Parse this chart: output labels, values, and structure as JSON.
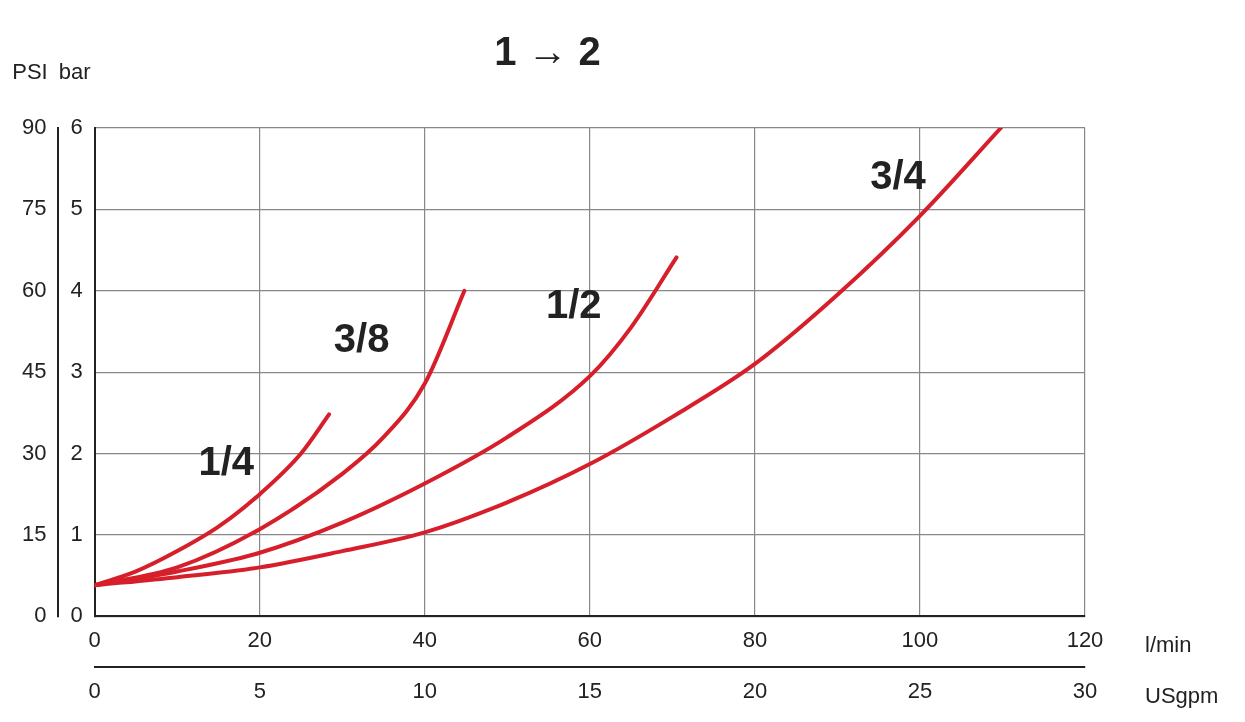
{
  "chart_data": {
    "type": "line",
    "title": "1 → 2",
    "xlabel": "l/min",
    "x2label": "USgpm",
    "ylabel": "bar",
    "y2label": "PSI",
    "xlim": [
      0,
      120
    ],
    "xticks": [
      0,
      20,
      40,
      60,
      80,
      100,
      120
    ],
    "x2lim": [
      0,
      30
    ],
    "x2ticks": [
      0,
      5,
      10,
      15,
      20,
      25,
      30
    ],
    "ylim": [
      0,
      6
    ],
    "yticks": [
      0,
      1,
      2,
      3,
      4,
      5,
      6
    ],
    "y2lim": [
      0,
      90
    ],
    "y2ticks": [
      0,
      15,
      30,
      45,
      60,
      75,
      90
    ],
    "grid": true,
    "legend": false,
    "marker": "none",
    "line_style": "solid",
    "series": [
      {
        "name": "1/4",
        "color": "#d71f2b",
        "x": [
          0,
          5,
          10,
          15,
          20,
          25,
          28.4
        ],
        "values": [
          0.38,
          0.55,
          0.8,
          1.1,
          1.5,
          2.0,
          2.48
        ]
      },
      {
        "name": "3/8",
        "color": "#d71f2b",
        "x": [
          0,
          10,
          20,
          30,
          35,
          40,
          44.8
        ],
        "values": [
          0.38,
          0.6,
          1.07,
          1.75,
          2.2,
          2.86,
          4.0
        ]
      },
      {
        "name": "1/2",
        "color": "#d71f2b",
        "x": [
          0,
          10,
          20,
          30,
          40,
          50,
          60,
          65,
          70.5
        ],
        "values": [
          0.38,
          0.55,
          0.78,
          1.15,
          1.63,
          2.2,
          2.95,
          3.55,
          4.41
        ]
      },
      {
        "name": "3/4",
        "color": "#d71f2b",
        "x": [
          0,
          10,
          20,
          30,
          40,
          50,
          60,
          70,
          80,
          90,
          100,
          109.8
        ],
        "values": [
          0.38,
          0.48,
          0.6,
          0.8,
          1.03,
          1.4,
          1.87,
          2.45,
          3.1,
          3.95,
          4.92,
          6.0
        ]
      }
    ]
  }
}
